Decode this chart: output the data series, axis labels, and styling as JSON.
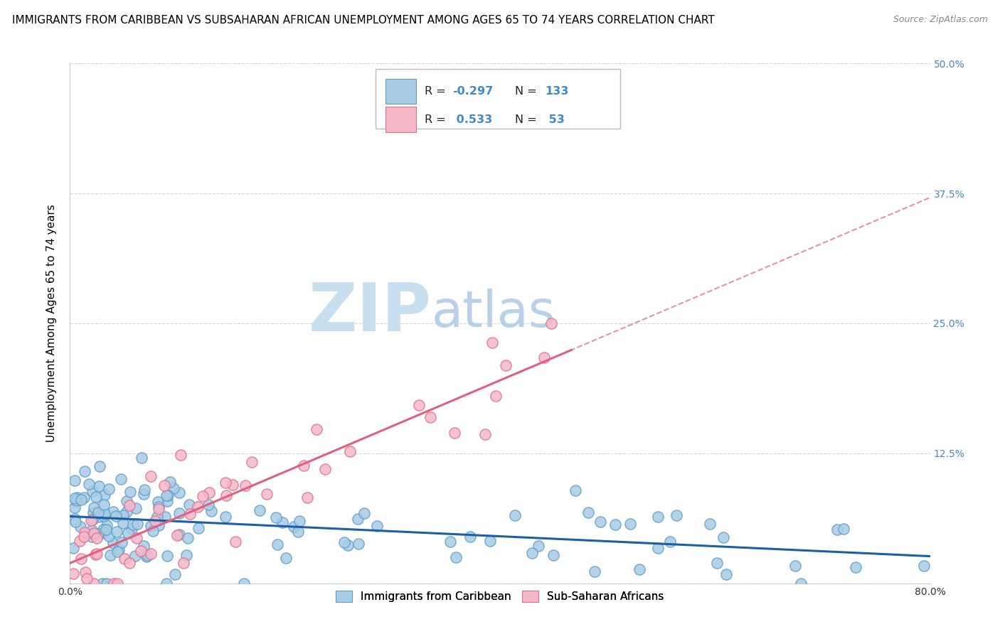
{
  "title": "IMMIGRANTS FROM CARIBBEAN VS SUBSAHARAN AFRICAN UNEMPLOYMENT AMONG AGES 65 TO 74 YEARS CORRELATION CHART",
  "source": "Source: ZipAtlas.com",
  "ylabel": "Unemployment Among Ages 65 to 74 years",
  "legend_label1": "Immigrants from Caribbean",
  "legend_label2": "Sub-Saharan Africans",
  "R1": -0.297,
  "N1": 133,
  "R2": 0.533,
  "N2": 53,
  "color1": "#a8cce4",
  "color2": "#f4b8c8",
  "color1_edge": "#5b9ec9",
  "color2_edge": "#e07090",
  "line1_color": "#1a5fa8",
  "line2_color": "#e06080",
  "xmin": 0.0,
  "xmax": 0.8,
  "ymin": 0.0,
  "ymax": 0.5,
  "xticks": [
    0.0,
    0.1,
    0.2,
    0.3,
    0.4,
    0.5,
    0.6,
    0.7,
    0.8
  ],
  "yticks": [
    0.0,
    0.125,
    0.25,
    0.375,
    0.5
  ],
  "ytick_labels_right": [
    "",
    "12.5%",
    "25.0%",
    "37.5%",
    "50.0%"
  ],
  "background_color": "#ffffff",
  "watermark_zip": "ZIP",
  "watermark_atlas": "atlas",
  "watermark_color_zip": "#c8dff0",
  "watermark_color_atlas": "#b8d0e8",
  "grid_color": "#cccccc",
  "title_fontsize": 11,
  "axis_label_fontsize": 11,
  "tick_fontsize": 10,
  "right_ytick_color": "#4488cc",
  "legend_R_color": "#4488cc",
  "legend_N_color": "#222222"
}
